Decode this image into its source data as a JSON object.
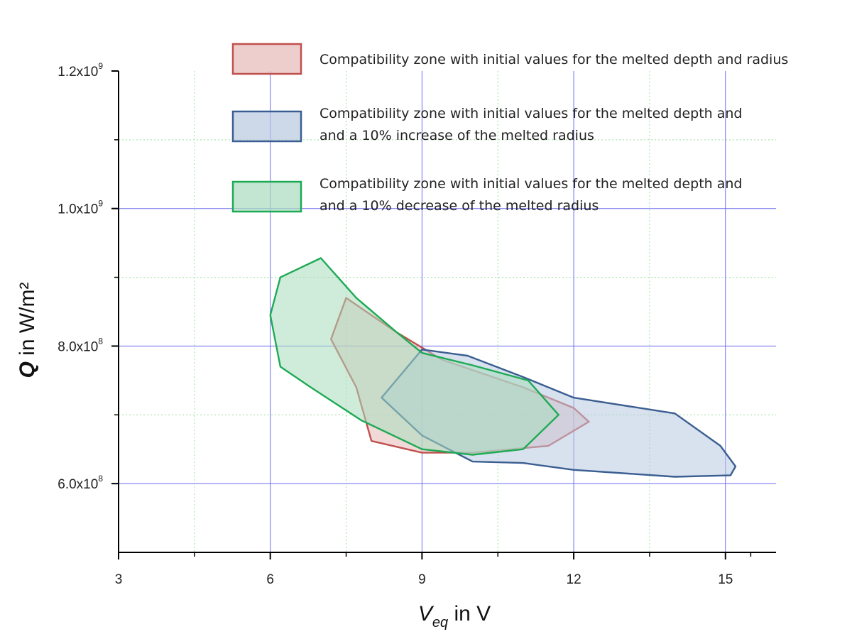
{
  "chart_data": {
    "type": "area",
    "xlabel": {
      "main": "V",
      "sub": "eq",
      "rest": " in V"
    },
    "ylabel": {
      "main": "Q",
      "rest": " in W/m²"
    },
    "xlim": [
      3,
      16
    ],
    "ylim": [
      500000000.0,
      1200000000.0
    ],
    "xticks": [
      3,
      6,
      9,
      12,
      15
    ],
    "xtick_labels": [
      "3",
      "6",
      "9",
      "12",
      "15"
    ],
    "yticks": [
      600000000.0,
      800000000.0,
      1000000000.0,
      1200000000.0
    ],
    "ytick_labels": [
      {
        "mant": "6.0x10",
        "exp": "8"
      },
      {
        "mant": "8.0x10",
        "exp": "8"
      },
      {
        "mant": "1.0x10",
        "exp": "9"
      },
      {
        "mant": "1.2x10",
        "exp": "9"
      }
    ],
    "grid": {
      "major": true,
      "minor": true
    },
    "legend_position": "top-right",
    "series": [
      {
        "name_lines": [
          "Compatibility zone with initial values for the melted depth and radius"
        ],
        "stroke": "#c0504d",
        "fill": "#e6b9b8",
        "points": [
          [
            7.5,
            870000000.0
          ],
          [
            8.5,
            820000000.0
          ],
          [
            9.4,
            780000000.0
          ],
          [
            11.0,
            740000000.0
          ],
          [
            12.0,
            710000000.0
          ],
          [
            12.3,
            690000000.0
          ],
          [
            11.5,
            655000000.0
          ],
          [
            10.0,
            645000000.0
          ],
          [
            9.0,
            645000000.0
          ],
          [
            8.0,
            662000000.0
          ],
          [
            7.7,
            740000000.0
          ],
          [
            7.2,
            810000000.0
          ]
        ]
      },
      {
        "name_lines": [
          "Compatibility zone with initial values for the melted depth and",
          "and a 10% increase of the melted radius"
        ],
        "stroke": "#3a5e91",
        "fill": "#b8c8e0",
        "points": [
          [
            9.0,
            795000000.0
          ],
          [
            9.9,
            786000000.0
          ],
          [
            11.0,
            755000000.0
          ],
          [
            12.0,
            725000000.0
          ],
          [
            14.0,
            702000000.0
          ],
          [
            14.9,
            655000000.0
          ],
          [
            15.2,
            625000000.0
          ],
          [
            15.1,
            612000000.0
          ],
          [
            14.0,
            610000000.0
          ],
          [
            12.0,
            620000000.0
          ],
          [
            11.0,
            630000000.0
          ],
          [
            10.0,
            632000000.0
          ],
          [
            9.0,
            670000000.0
          ],
          [
            8.2,
            725000000.0
          ]
        ]
      },
      {
        "name_lines": [
          "Compatibility zone with initial values for the melted depth and",
          "and a 10% decrease of the melted radius"
        ],
        "stroke": "#1eaa55",
        "fill": "#a8dcbe",
        "points": [
          [
            7.0,
            928000000.0
          ],
          [
            7.7,
            870000000.0
          ],
          [
            8.5,
            820000000.0
          ],
          [
            9.0,
            790000000.0
          ],
          [
            10.0,
            772000000.0
          ],
          [
            11.1,
            750000000.0
          ],
          [
            11.7,
            700000000.0
          ],
          [
            11.0,
            650000000.0
          ],
          [
            10.0,
            642000000.0
          ],
          [
            9.0,
            650000000.0
          ],
          [
            7.8,
            692000000.0
          ],
          [
            6.8,
            740000000.0
          ],
          [
            6.2,
            770000000.0
          ],
          [
            6.0,
            845000000.0
          ],
          [
            6.2,
            900000000.0
          ]
        ]
      }
    ]
  }
}
